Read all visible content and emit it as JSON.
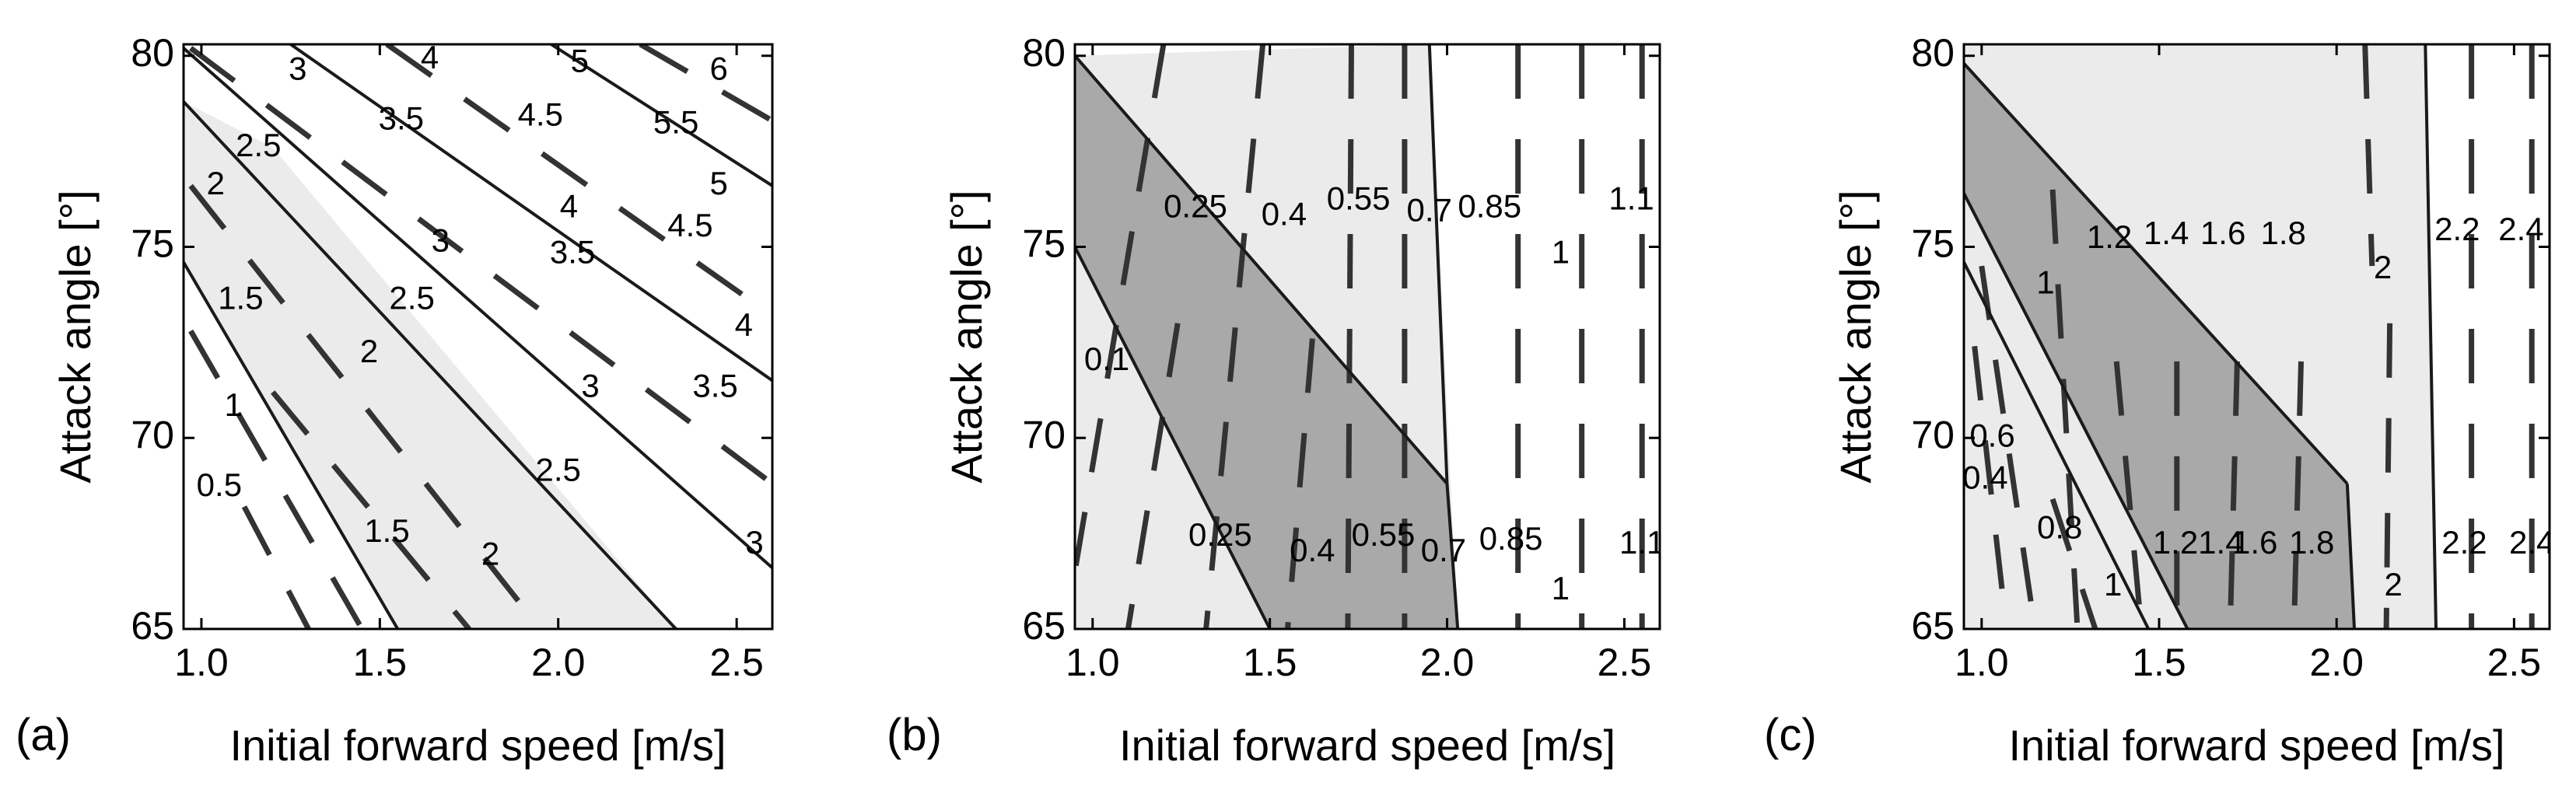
{
  "colors": {
    "light_region": "#ebebeb",
    "dark_region": "#a9a9a9",
    "line": "#1a1a1a",
    "dashed": "#333333"
  },
  "chart_data": [
    {
      "type": "contour",
      "panel_label": "(a)",
      "xlabel": "Initial forward speed [m/s]",
      "ylabel": "Attack angle [°]",
      "xlim": [
        0.95,
        2.6
      ],
      "ylim": [
        65,
        80.3
      ],
      "xticks": [
        "1.0",
        "1.5",
        "2.0",
        "2.5"
      ],
      "xtick_values": [
        1.0,
        1.5,
        2.0,
        2.5
      ],
      "yticks": [
        "65",
        "70",
        "75",
        "80"
      ],
      "ytick_values": [
        65,
        70,
        75,
        80
      ],
      "regions": [
        {
          "shade": "light",
          "polygon": [
            [
              0.95,
              78.8
            ],
            [
              1.2,
              77.6
            ],
            [
              2.33,
              65
            ],
            [
              1.55,
              65
            ],
            [
              0.95,
              74.6
            ]
          ]
        }
      ],
      "solid_lines": [
        [
          [
            0.95,
            80.2
          ],
          [
            2.6,
            66.6
          ]
        ],
        [
          [
            1.25,
            80.3
          ],
          [
            2.6,
            71.5
          ]
        ],
        [
          [
            1.98,
            80.3
          ],
          [
            2.6,
            76.6
          ]
        ],
        [
          [
            0.95,
            78.8
          ],
          [
            2.33,
            65
          ]
        ],
        [
          [
            0.95,
            74.6
          ],
          [
            1.55,
            65
          ]
        ]
      ],
      "dashed_lines": [
        [
          [
            0.97,
            80.2
          ],
          [
            2.6,
            68.8
          ]
        ],
        [
          [
            1.52,
            80.3
          ],
          [
            2.6,
            73.2
          ]
        ],
        [
          [
            2.23,
            80.3
          ],
          [
            2.6,
            78.3
          ]
        ],
        [
          [
            0.97,
            76.6
          ],
          [
            1.95,
            65
          ]
        ],
        [
          [
            1.2,
            71.2
          ],
          [
            1.75,
            65
          ]
        ],
        [
          [
            0.97,
            72.8
          ],
          [
            1.45,
            65
          ]
        ],
        [
          [
            1.12,
            68.2
          ],
          [
            1.3,
            65
          ]
        ]
      ],
      "labels": [
        {
          "text": "3",
          "x": 1.27,
          "y": 79.6
        },
        {
          "text": "4",
          "x": 1.64,
          "y": 79.9
        },
        {
          "text": "5",
          "x": 2.06,
          "y": 79.8
        },
        {
          "text": "6",
          "x": 2.45,
          "y": 79.6
        },
        {
          "text": "2.5",
          "x": 1.16,
          "y": 77.6
        },
        {
          "text": "3.5",
          "x": 1.56,
          "y": 78.3
        },
        {
          "text": "4.5",
          "x": 1.95,
          "y": 78.4
        },
        {
          "text": "5.5",
          "x": 2.33,
          "y": 78.2
        },
        {
          "text": "2",
          "x": 1.04,
          "y": 76.6
        },
        {
          "text": "5",
          "x": 2.45,
          "y": 76.6
        },
        {
          "text": "4",
          "x": 2.03,
          "y": 76.0
        },
        {
          "text": "4.5",
          "x": 2.37,
          "y": 75.5
        },
        {
          "text": "3",
          "x": 1.67,
          "y": 75.1
        },
        {
          "text": "3.5",
          "x": 2.04,
          "y": 74.8
        },
        {
          "text": "1.5",
          "x": 1.11,
          "y": 73.6
        },
        {
          "text": "2.5",
          "x": 1.59,
          "y": 73.6
        },
        {
          "text": "4",
          "x": 2.52,
          "y": 72.9
        },
        {
          "text": "2",
          "x": 1.47,
          "y": 72.2
        },
        {
          "text": "3",
          "x": 2.09,
          "y": 71.3
        },
        {
          "text": "3.5",
          "x": 2.44,
          "y": 71.3
        },
        {
          "text": "1",
          "x": 1.09,
          "y": 70.8
        },
        {
          "text": "0.5",
          "x": 1.05,
          "y": 68.7
        },
        {
          "text": "2.5",
          "x": 2.0,
          "y": 69.1
        },
        {
          "text": "1.5",
          "x": 1.52,
          "y": 67.5
        },
        {
          "text": "2",
          "x": 1.81,
          "y": 66.9
        },
        {
          "text": "3",
          "x": 2.55,
          "y": 67.2
        }
      ]
    },
    {
      "type": "contour",
      "panel_label": "(b)",
      "xlabel": "Initial forward speed [m/s]",
      "ylabel": "Attack angle [°]",
      "xlim": [
        0.95,
        2.6
      ],
      "ylim": [
        65,
        80.3
      ],
      "xticks": [
        "1.0",
        "1.5",
        "2.0",
        "2.5"
      ],
      "xtick_values": [
        1.0,
        1.5,
        2.0,
        2.5
      ],
      "yticks": [
        "65",
        "70",
        "75",
        "80"
      ],
      "ytick_values": [
        65,
        70,
        75,
        80
      ],
      "regions": [
        {
          "shade": "light",
          "polygon": [
            [
              0.95,
              80.0
            ],
            [
              1.95,
              80.3
            ],
            [
              2.03,
              65
            ],
            [
              0.95,
              65
            ]
          ]
        },
        {
          "shade": "dark",
          "polygon": [
            [
              0.95,
              80.0
            ],
            [
              2.0,
              68.8
            ],
            [
              2.03,
              65
            ],
            [
              1.5,
              65
            ],
            [
              0.95,
              75.0
            ]
          ]
        }
      ],
      "solid_lines": [
        [
          [
            0.95,
            80.0
          ],
          [
            2.0,
            68.8
          ]
        ],
        [
          [
            0.95,
            75.0
          ],
          [
            1.5,
            65
          ]
        ],
        [
          [
            1.95,
            80.3
          ],
          [
            2.0,
            68.8
          ],
          [
            2.03,
            65
          ]
        ]
      ],
      "dashed_lines": [
        [
          [
            1.2,
            80.3
          ],
          [
            0.95,
            66.5
          ]
        ],
        [
          [
            1.24,
            73.0
          ],
          [
            1.1,
            65
          ]
        ],
        [
          [
            1.48,
            80.3
          ],
          [
            1.32,
            65
          ]
        ],
        [
          [
            1.62,
            72.6
          ],
          [
            1.55,
            65
          ]
        ],
        [
          [
            1.73,
            80.3
          ],
          [
            1.72,
            65
          ]
        ],
        [
          [
            1.88,
            80.3
          ],
          [
            1.88,
            65
          ]
        ],
        [
          [
            2.2,
            80.3
          ],
          [
            2.2,
            65
          ]
        ],
        [
          [
            2.38,
            80.3
          ],
          [
            2.38,
            65
          ]
        ],
        [
          [
            2.55,
            80.3
          ],
          [
            2.55,
            65
          ]
        ]
      ],
      "labels": [
        {
          "text": "0.25",
          "x": 1.29,
          "y": 76.0
        },
        {
          "text": "0.4",
          "x": 1.54,
          "y": 75.8
        },
        {
          "text": "0.55",
          "x": 1.75,
          "y": 76.2
        },
        {
          "text": "0.7",
          "x": 1.95,
          "y": 75.9
        },
        {
          "text": "0.85",
          "x": 2.12,
          "y": 76.0
        },
        {
          "text": "1.1",
          "x": 2.52,
          "y": 76.2
        },
        {
          "text": "1",
          "x": 2.32,
          "y": 74.8
        },
        {
          "text": "0.1",
          "x": 1.04,
          "y": 72.0
        },
        {
          "text": "0.25",
          "x": 1.36,
          "y": 67.4
        },
        {
          "text": "0.4",
          "x": 1.62,
          "y": 67.0
        },
        {
          "text": "0.55",
          "x": 1.82,
          "y": 67.4
        },
        {
          "text": "0.7",
          "x": 1.99,
          "y": 67.0
        },
        {
          "text": "0.85",
          "x": 2.18,
          "y": 67.3
        },
        {
          "text": "1.1",
          "x": 2.55,
          "y": 67.2
        },
        {
          "text": "1",
          "x": 2.32,
          "y": 66.0
        }
      ]
    },
    {
      "type": "contour",
      "panel_label": "(c)",
      "xlabel": "Initial forward speed [m/s]",
      "ylabel": "Attack angle [°]",
      "xlim": [
        0.95,
        2.6
      ],
      "ylim": [
        65,
        80.3
      ],
      "xticks": [
        "1.0",
        "1.5",
        "2.0",
        "2.5"
      ],
      "xtick_values": [
        1.0,
        1.5,
        2.0,
        2.5
      ],
      "yticks": [
        "65",
        "70",
        "75",
        "80"
      ],
      "ytick_values": [
        65,
        70,
        75,
        80
      ],
      "regions": [
        {
          "shade": "light",
          "polygon": [
            [
              0.95,
              80.3
            ],
            [
              2.25,
              80.3
            ],
            [
              2.28,
              65
            ],
            [
              0.95,
              65
            ]
          ]
        },
        {
          "shade": "dark",
          "polygon": [
            [
              0.95,
              79.8
            ],
            [
              2.03,
              68.8
            ],
            [
              2.05,
              65
            ],
            [
              1.58,
              65
            ],
            [
              0.95,
              76.4
            ]
          ]
        }
      ],
      "solid_lines": [
        [
          [
            0.95,
            79.8
          ],
          [
            2.03,
            68.8
          ]
        ],
        [
          [
            0.95,
            76.4
          ],
          [
            1.58,
            65
          ]
        ],
        [
          [
            2.03,
            68.8
          ],
          [
            2.05,
            65
          ]
        ],
        [
          [
            2.25,
            80.3
          ],
          [
            2.28,
            65
          ]
        ],
        [
          [
            0.95,
            74.6
          ],
          [
            1.47,
            65
          ]
        ]
      ],
      "dashed_lines": [
        [
          [
            1.2,
            76.5
          ],
          [
            1.27,
            65
          ]
        ],
        [
          [
            1.0,
            74.5
          ],
          [
            1.15,
            65
          ]
        ],
        [
          [
            0.98,
            72.4
          ],
          [
            1.07,
            65
          ]
        ],
        [
          [
            1.2,
            68.4
          ],
          [
            1.32,
            65
          ]
        ],
        [
          [
            1.38,
            72.0
          ],
          [
            1.45,
            65
          ]
        ],
        [
          [
            1.55,
            72.0
          ],
          [
            1.55,
            65
          ]
        ],
        [
          [
            1.72,
            72.0
          ],
          [
            1.7,
            65
          ]
        ],
        [
          [
            1.9,
            72.0
          ],
          [
            1.88,
            65
          ]
        ],
        [
          [
            2.08,
            80.3
          ],
          [
            2.1,
            74.5
          ]
        ],
        [
          [
            2.15,
            73.0
          ],
          [
            2.14,
            65
          ]
        ],
        [
          [
            2.38,
            80.3
          ],
          [
            2.38,
            65
          ]
        ],
        [
          [
            2.55,
            80.3
          ],
          [
            2.55,
            65
          ]
        ]
      ],
      "labels": [
        {
          "text": "1.2",
          "x": 1.36,
          "y": 75.2
        },
        {
          "text": "1.4",
          "x": 1.52,
          "y": 75.3
        },
        {
          "text": "1.6",
          "x": 1.68,
          "y": 75.3
        },
        {
          "text": "1.8",
          "x": 1.85,
          "y": 75.3
        },
        {
          "text": "2.2",
          "x": 2.34,
          "y": 75.4
        },
        {
          "text": "2.4",
          "x": 2.52,
          "y": 75.4
        },
        {
          "text": "2",
          "x": 2.13,
          "y": 74.4
        },
        {
          "text": "1",
          "x": 1.18,
          "y": 74.0
        },
        {
          "text": "0.6",
          "x": 1.03,
          "y": 70.0
        },
        {
          "text": "0.4",
          "x": 1.01,
          "y": 68.9
        },
        {
          "text": "0.8",
          "x": 1.22,
          "y": 67.6
        },
        {
          "text": "1.21.4",
          "x": 1.61,
          "y": 67.2
        },
        {
          "text": "1.6",
          "x": 1.77,
          "y": 67.2
        },
        {
          "text": "1.8",
          "x": 1.93,
          "y": 67.2
        },
        {
          "text": "2.2",
          "x": 2.36,
          "y": 67.2
        },
        {
          "text": "2.4",
          "x": 2.55,
          "y": 67.2
        },
        {
          "text": "1",
          "x": 1.37,
          "y": 66.1
        },
        {
          "text": "2",
          "x": 2.16,
          "y": 66.1
        }
      ]
    }
  ]
}
